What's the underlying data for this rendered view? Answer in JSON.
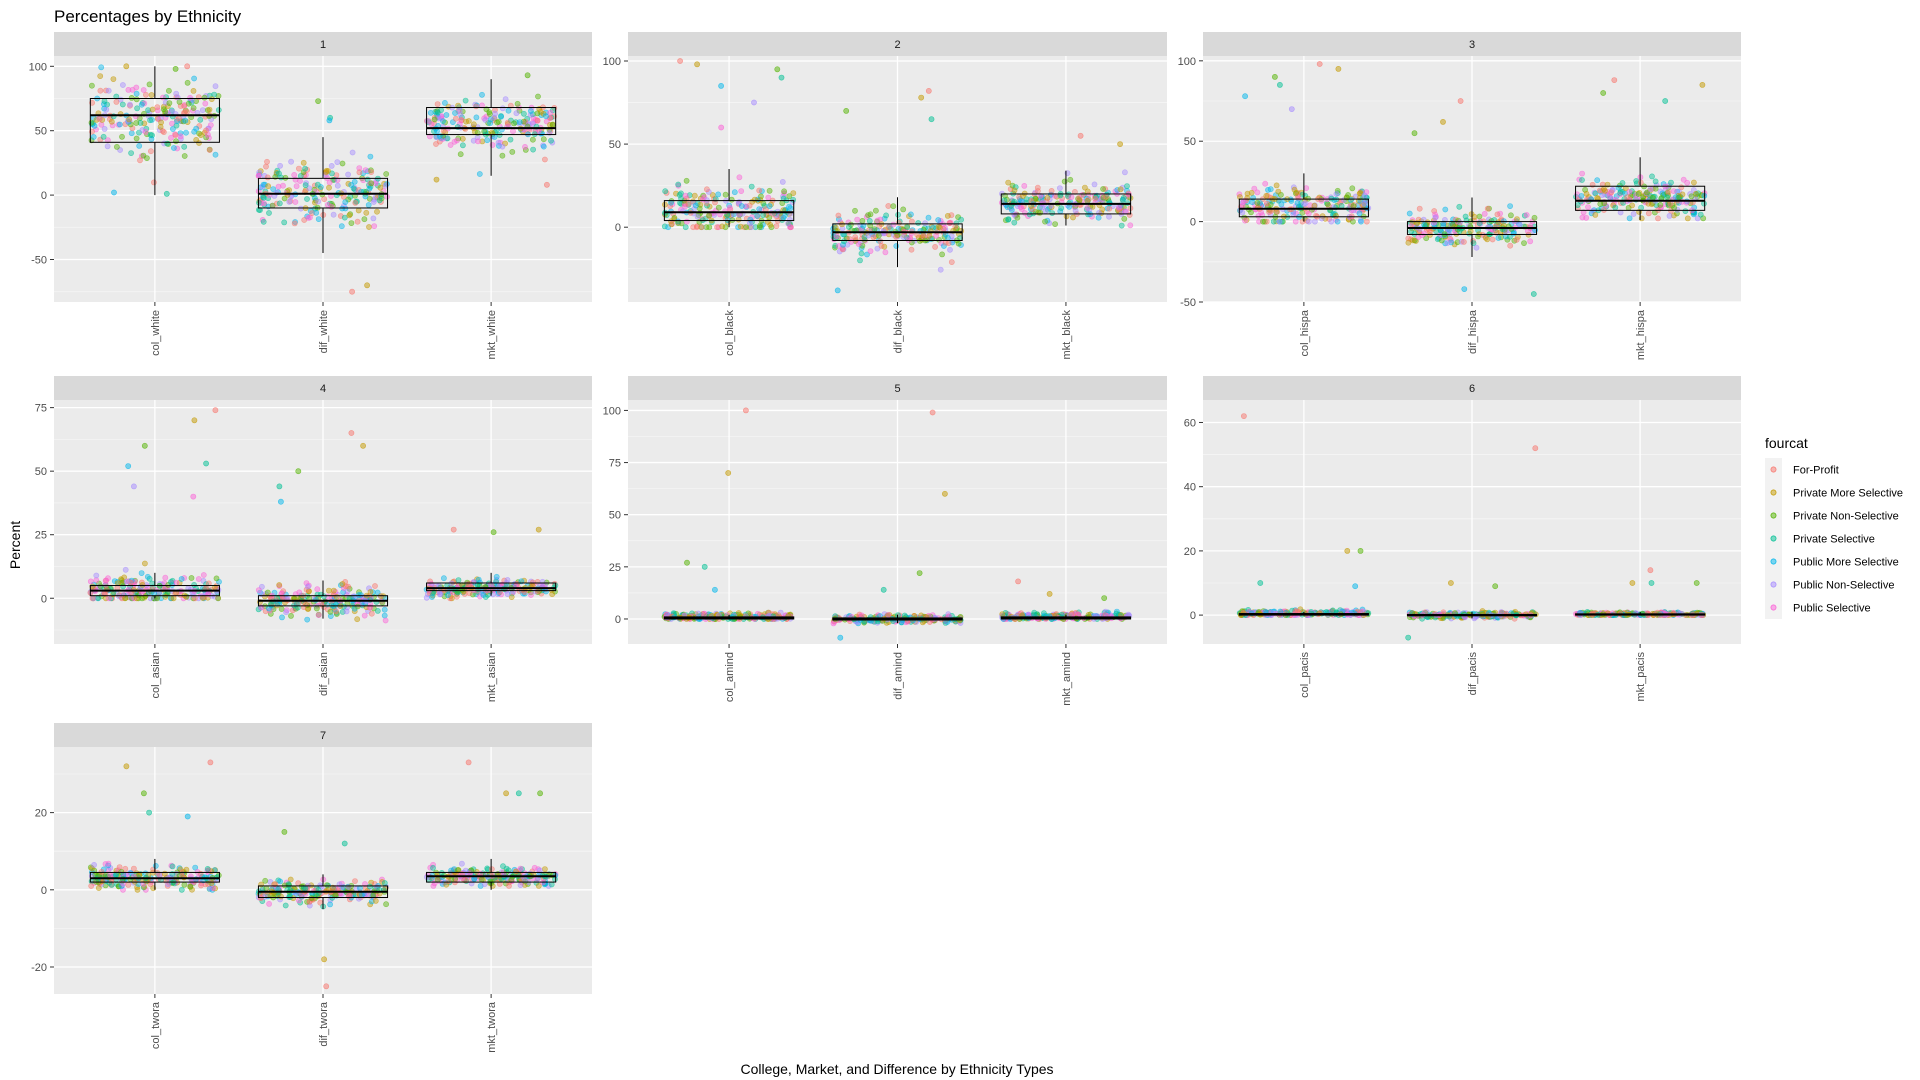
{
  "chart_data": {
    "type": "scatter",
    "title": "Percentages by Ethnicity",
    "xlabel": "College, Market, and Difference by Ethnicity Types",
    "ylabel": "Percent",
    "grid": true,
    "legend": {
      "title": "fourcat",
      "placement": "right",
      "entries": [
        {
          "name": "For-Profit",
          "color": "#F8766D"
        },
        {
          "name": "Private More Selective",
          "color": "#C49A00"
        },
        {
          "name": "Private Non-Selective",
          "color": "#53B400"
        },
        {
          "name": "Private Selective",
          "color": "#00C094"
        },
        {
          "name": "Public More Selective",
          "color": "#00B6EB"
        },
        {
          "name": "Public Non-Selective",
          "color": "#A58AFF"
        },
        {
          "name": "Public Selective",
          "color": "#FB61D7"
        }
      ]
    },
    "panels": [
      {
        "strip": "1",
        "categories": [
          "col_white",
          "dif_white",
          "mkt_white"
        ],
        "ylim": [
          -83,
          108
        ],
        "yticks": [
          -50,
          0,
          50,
          100
        ],
        "boxes": [
          {
            "q1": 41,
            "median": 62,
            "q3": 75,
            "whisker_low": 0,
            "whisker_high": 100
          },
          {
            "q1": -10,
            "median": 1,
            "q3": 13,
            "whisker_low": -45,
            "whisker_high": 45
          },
          {
            "q1": 47,
            "median": 52,
            "q3": 68,
            "whisker_low": 15,
            "whisker_high": 90
          }
        ],
        "points": [
          {
            "center": 60,
            "spread": 24,
            "min": 0,
            "max": 100,
            "outliers": [
              100,
              100,
              98,
              1,
              2
            ]
          },
          {
            "center": 1,
            "spread": 20,
            "min": -75,
            "max": 73,
            "outliers": [
              -75,
              -70,
              73,
              60,
              58
            ]
          },
          {
            "center": 55,
            "spread": 16,
            "min": 5,
            "max": 95,
            "outliers": [
              8,
              12,
              93
            ]
          }
        ]
      },
      {
        "strip": "2",
        "categories": [
          "col_black",
          "dif_black",
          "mkt_black"
        ],
        "ylim": [
          -45,
          103
        ],
        "yticks": [
          0,
          50,
          100
        ],
        "boxes": [
          {
            "q1": 4,
            "median": 9,
            "q3": 16,
            "whisker_low": 0,
            "whisker_high": 35
          },
          {
            "q1": -8,
            "median": -3,
            "q3": 2,
            "whisker_low": -24,
            "whisker_high": 18
          },
          {
            "q1": 8,
            "median": 14,
            "q3": 20,
            "whisker_low": 1,
            "whisker_high": 34
          }
        ],
        "points": [
          {
            "center": 10,
            "spread": 14,
            "min": 0,
            "max": 100,
            "outliers": [
              100,
              98,
              95,
              90,
              85,
              75,
              60
            ]
          },
          {
            "center": -3,
            "spread": 10,
            "min": -38,
            "max": 82,
            "outliers": [
              82,
              78,
              70,
              65,
              -38
            ]
          },
          {
            "center": 15,
            "spread": 9,
            "min": 0,
            "max": 55,
            "outliers": [
              55,
              50
            ]
          }
        ]
      },
      {
        "strip": "3",
        "categories": [
          "col_hispa",
          "dif_hispa",
          "mkt_hispa"
        ],
        "ylim": [
          -50,
          103
        ],
        "yticks": [
          -50,
          0,
          50,
          100
        ],
        "boxes": [
          {
            "q1": 3,
            "median": 8,
            "q3": 14,
            "whisker_low": 0,
            "whisker_high": 30
          },
          {
            "q1": -8,
            "median": -4,
            "q3": 0,
            "whisker_low": -22,
            "whisker_high": 15
          },
          {
            "q1": 7,
            "median": 13,
            "q3": 22,
            "whisker_low": 1,
            "whisker_high": 40
          }
        ],
        "points": [
          {
            "center": 9,
            "spread": 10,
            "min": 0,
            "max": 98,
            "outliers": [
              98,
              95,
              90,
              85,
              78,
              70
            ]
          },
          {
            "center": -4,
            "spread": 8,
            "min": -45,
            "max": 75,
            "outliers": [
              75,
              62,
              55,
              -45,
              -42
            ]
          },
          {
            "center": 15,
            "spread": 10,
            "min": 2,
            "max": 88,
            "outliers": [
              88,
              85,
              80,
              75
            ]
          }
        ]
      },
      {
        "strip": "4",
        "categories": [
          "col_asian",
          "dif_asian",
          "mkt_asian"
        ],
        "ylim": [
          -18,
          78
        ],
        "yticks": [
          0,
          25,
          50,
          75
        ],
        "boxes": [
          {
            "q1": 1,
            "median": 3,
            "q3": 5,
            "whisker_low": 0,
            "whisker_high": 10
          },
          {
            "q1": -3,
            "median": -1,
            "q3": 1,
            "whisker_low": -8,
            "whisker_high": 7
          },
          {
            "q1": 3,
            "median": 4,
            "q3": 6,
            "whisker_low": 1,
            "whisker_high": 10
          }
        ],
        "points": [
          {
            "center": 3,
            "spread": 5,
            "min": 0,
            "max": 74,
            "outliers": [
              74,
              70,
              60,
              53,
              52,
              44,
              40
            ]
          },
          {
            "center": -1,
            "spread": 5,
            "min": -15,
            "max": 65,
            "outliers": [
              65,
              60,
              50,
              44,
              38
            ]
          },
          {
            "center": 4,
            "spread": 3,
            "min": 0,
            "max": 27,
            "outliers": [
              27,
              27,
              26
            ]
          }
        ]
      },
      {
        "strip": "5",
        "categories": [
          "col_amind",
          "dif_amind",
          "mkt_amind"
        ],
        "ylim": [
          -12,
          105
        ],
        "yticks": [
          0,
          25,
          50,
          75,
          100
        ],
        "boxes": [
          {
            "q1": 0,
            "median": 0.5,
            "q3": 1,
            "whisker_low": 0,
            "whisker_high": 2
          },
          {
            "q1": -0.5,
            "median": 0,
            "q3": 0.5,
            "whisker_low": -2,
            "whisker_high": 2
          },
          {
            "q1": 0,
            "median": 0.5,
            "q3": 1,
            "whisker_low": 0,
            "whisker_high": 2
          }
        ],
        "points": [
          {
            "center": 1,
            "spread": 1.5,
            "min": 0,
            "max": 100,
            "outliers": [
              100,
              70,
              27,
              25,
              14
            ]
          },
          {
            "center": 0,
            "spread": 1.5,
            "min": -9,
            "max": 99,
            "outliers": [
              99,
              60,
              22,
              14,
              -9
            ]
          },
          {
            "center": 1,
            "spread": 1.5,
            "min": 0,
            "max": 18,
            "outliers": [
              18,
              12,
              10
            ]
          }
        ]
      },
      {
        "strip": "6",
        "categories": [
          "col_pacis",
          "dif_pacis",
          "mkt_pacis"
        ],
        "ylim": [
          -9,
          67
        ],
        "yticks": [
          0,
          20,
          40,
          60
        ],
        "boxes": [
          {
            "q1": 0,
            "median": 0.2,
            "q3": 0.5,
            "whisker_low": 0,
            "whisker_high": 1
          },
          {
            "q1": -0.2,
            "median": 0,
            "q3": 0.2,
            "whisker_low": -1,
            "whisker_high": 1
          },
          {
            "q1": 0,
            "median": 0.2,
            "q3": 0.4,
            "whisker_low": 0,
            "whisker_high": 1
          }
        ],
        "points": [
          {
            "center": 0.5,
            "spread": 0.8,
            "min": 0,
            "max": 62,
            "outliers": [
              62,
              20,
              20,
              10,
              9
            ]
          },
          {
            "center": 0,
            "spread": 0.8,
            "min": -7,
            "max": 52,
            "outliers": [
              52,
              10,
              9,
              -7
            ]
          },
          {
            "center": 0.3,
            "spread": 0.5,
            "min": 0,
            "max": 14,
            "outliers": [
              14,
              10,
              10,
              10
            ]
          }
        ]
      },
      {
        "strip": "7",
        "categories": [
          "col_twora",
          "dif_twora",
          "mkt_twora"
        ],
        "ylim": [
          -27,
          37
        ],
        "yticks": [
          -20,
          0,
          20
        ],
        "boxes": [
          {
            "q1": 2,
            "median": 3,
            "q3": 4.5,
            "whisker_low": 0,
            "whisker_high": 8
          },
          {
            "q1": -2,
            "median": -0.5,
            "q3": 1,
            "whisker_low": -5,
            "whisker_high": 4
          },
          {
            "q1": 2,
            "median": 3.5,
            "q3": 4.5,
            "whisker_low": 0,
            "whisker_high": 8
          }
        ],
        "points": [
          {
            "center": 3,
            "spread": 2.5,
            "min": 0,
            "max": 33,
            "outliers": [
              33,
              32,
              25,
              20,
              19
            ]
          },
          {
            "center": -0.5,
            "spread": 2.5,
            "min": -25,
            "max": 15,
            "outliers": [
              -25,
              -18,
              15,
              12
            ]
          },
          {
            "center": 3.5,
            "spread": 2,
            "min": 1,
            "max": 33,
            "outliers": [
              33,
              25,
              25,
              25
            ]
          }
        ]
      }
    ]
  }
}
